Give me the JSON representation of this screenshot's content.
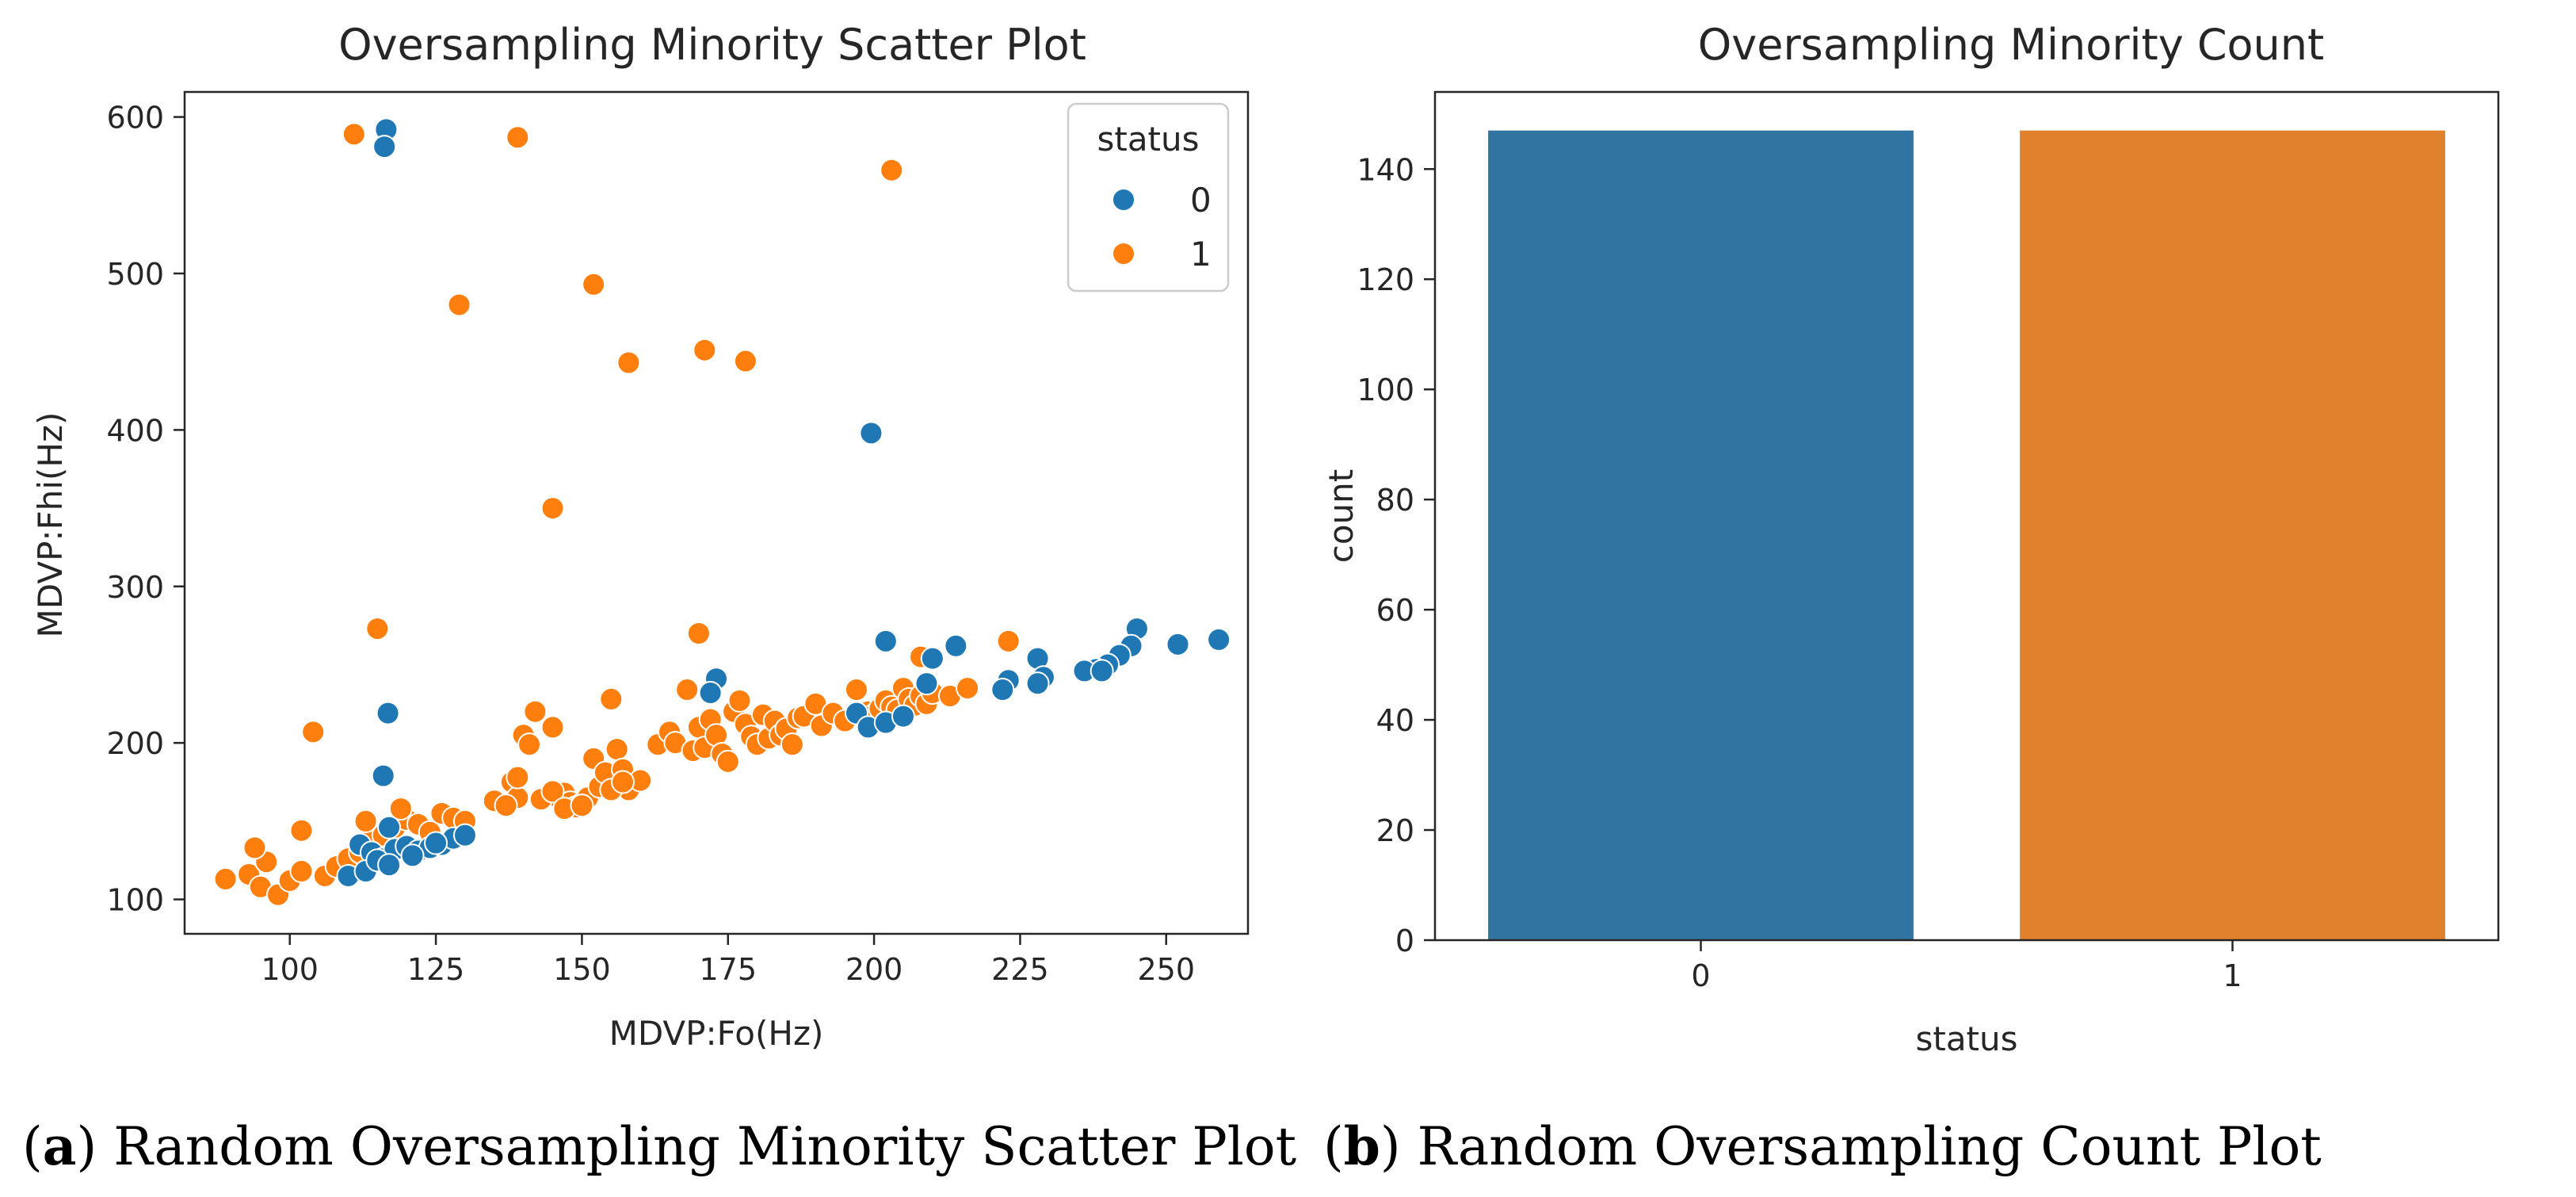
{
  "chart_data": [
    {
      "type": "scatter",
      "title": "Oversampling Minority Scatter Plot",
      "xlabel": "MDVP:Fo(Hz)",
      "ylabel": "MDVP:Fhi(Hz)",
      "xlim": [
        82,
        264
      ],
      "ylim": [
        78,
        616
      ],
      "xticks": [
        100,
        125,
        150,
        175,
        200,
        225,
        250
      ],
      "yticks": [
        100,
        200,
        300,
        400,
        500,
        600
      ],
      "grid": false,
      "legend": {
        "title": "status",
        "placement": "top-right"
      },
      "series": [
        {
          "name": "0",
          "color": "#1f77b4",
          "points": [
            [
              116.5,
              592
            ],
            [
              116.2,
              581
            ],
            [
              199.5,
              398
            ],
            [
              116.8,
              219
            ],
            [
              116.0,
              179
            ],
            [
              117.0,
              146
            ],
            [
              202,
              265
            ],
            [
              214,
              262
            ],
            [
              210,
              254
            ],
            [
              228,
              254
            ],
            [
              245,
              273
            ],
            [
              252,
              263
            ],
            [
              259,
              266
            ],
            [
              244,
              262
            ],
            [
              242,
              256
            ],
            [
              240,
              250
            ],
            [
              238,
              247
            ],
            [
              236,
              246
            ],
            [
              239,
              246
            ],
            [
              229,
              242
            ],
            [
              223,
              240
            ],
            [
              222,
              234
            ],
            [
              228,
              238
            ],
            [
              173,
              241
            ],
            [
              172,
              232
            ],
            [
              197,
              219
            ],
            [
              199,
              210
            ],
            [
              202,
              213
            ],
            [
              205,
              217
            ],
            [
              209,
              238
            ],
            [
              112,
              135
            ],
            [
              114,
              130
            ],
            [
              116,
              126
            ],
            [
              118,
              132
            ],
            [
              120,
              134
            ],
            [
              122,
              131
            ],
            [
              124,
              133
            ],
            [
              126,
              135
            ],
            [
              128,
              139
            ],
            [
              130,
              141
            ],
            [
              110,
              115
            ],
            [
              113,
              118
            ],
            [
              115,
              125
            ],
            [
              117,
              122
            ],
            [
              121,
              128
            ],
            [
              125,
              136
            ]
          ]
        },
        {
          "name": "1",
          "color": "#ff7f0e",
          "points": [
            [
              111,
              589
            ],
            [
              139,
              587
            ],
            [
              203,
              566
            ],
            [
              152,
              493
            ],
            [
              129,
              480
            ],
            [
              171,
              451
            ],
            [
              178,
              444
            ],
            [
              158,
              443
            ],
            [
              145,
              350
            ],
            [
              115,
              273
            ],
            [
              170,
              270
            ],
            [
              223,
              265
            ],
            [
              104,
              207
            ],
            [
              89,
              113
            ],
            [
              93,
              116
            ],
            [
              95,
              108
            ],
            [
              98,
              103
            ],
            [
              100,
              112
            ],
            [
              102,
              118
            ],
            [
              96,
              124
            ],
            [
              94,
              133
            ],
            [
              102,
              144
            ],
            [
              106,
              115
            ],
            [
              108,
              121
            ],
            [
              110,
              126
            ],
            [
              112,
              130
            ],
            [
              114,
              138
            ],
            [
              116,
              141
            ],
            [
              118,
              146
            ],
            [
              120,
              151
            ],
            [
              122,
              148
            ],
            [
              124,
              143
            ],
            [
              126,
              155
            ],
            [
              128,
              152
            ],
            [
              130,
              150
            ],
            [
              119,
              158
            ],
            [
              113,
              150
            ],
            [
              138,
              175
            ],
            [
              139,
              165
            ],
            [
              140,
              205
            ],
            [
              141,
              199
            ],
            [
              142,
              220
            ],
            [
              145,
              210
            ],
            [
              146,
              165
            ],
            [
              147,
              168
            ],
            [
              148,
              162
            ],
            [
              149,
              159
            ],
            [
              150,
              161
            ],
            [
              151,
              165
            ],
            [
              152,
              190
            ],
            [
              153,
              172
            ],
            [
              154,
              181
            ],
            [
              155,
              228
            ],
            [
              156,
              196
            ],
            [
              157,
              183
            ],
            [
              158,
              170
            ],
            [
              160,
              176
            ],
            [
              163,
              199
            ],
            [
              165,
              207
            ],
            [
              166,
              200
            ],
            [
              168,
              234
            ],
            [
              169,
              195
            ],
            [
              170,
              210
            ],
            [
              171,
              197
            ],
            [
              172,
              215
            ],
            [
              173,
              205
            ],
            [
              174,
              193
            ],
            [
              175,
              188
            ],
            [
              176,
              220
            ],
            [
              177,
              227
            ],
            [
              178,
              212
            ],
            [
              179,
              204
            ],
            [
              180,
              199
            ],
            [
              181,
              218
            ],
            [
              182,
              203
            ],
            [
              183,
              214
            ],
            [
              184,
              205
            ],
            [
              185,
              209
            ],
            [
              186,
              199
            ],
            [
              187,
              216
            ],
            [
              188,
              217
            ],
            [
              190,
              225
            ],
            [
              191,
              211
            ],
            [
              193,
              219
            ],
            [
              195,
              214
            ],
            [
              197,
              234
            ],
            [
              199,
              220
            ],
            [
              200,
              218
            ],
            [
              201,
              222
            ],
            [
              202,
              227
            ],
            [
              203,
              223
            ],
            [
              204,
              221
            ],
            [
              205,
              235
            ],
            [
              206,
              228
            ],
            [
              207,
              224
            ],
            [
              208,
              230
            ],
            [
              209,
              225
            ],
            [
              210,
              232
            ],
            [
              213,
              230
            ],
            [
              216,
              235
            ],
            [
              208,
              255
            ],
            [
              135,
              163
            ],
            [
              137,
              160
            ],
            [
              139,
              178
            ],
            [
              143,
              164
            ],
            [
              145,
              169
            ],
            [
              147,
              158
            ],
            [
              150,
              160
            ],
            [
              155,
              170
            ],
            [
              157,
              175
            ]
          ]
        }
      ]
    },
    {
      "type": "bar",
      "title": "Oversampling Minority Count",
      "xlabel": "status",
      "ylabel": "count",
      "categories": [
        "0",
        "1"
      ],
      "values": [
        147,
        147
      ],
      "colors": [
        "#3274a1",
        "#e1812c"
      ],
      "ylim": [
        0,
        154
      ],
      "yticks": [
        0,
        20,
        40,
        60,
        80,
        100,
        120,
        140
      ],
      "grid": false
    }
  ],
  "captions": {
    "a_letter": "a",
    "a_text": " Random Oversampling Minority Scatter Plot",
    "b_letter": "b",
    "b_text": " Random Oversampling Count Plot"
  }
}
